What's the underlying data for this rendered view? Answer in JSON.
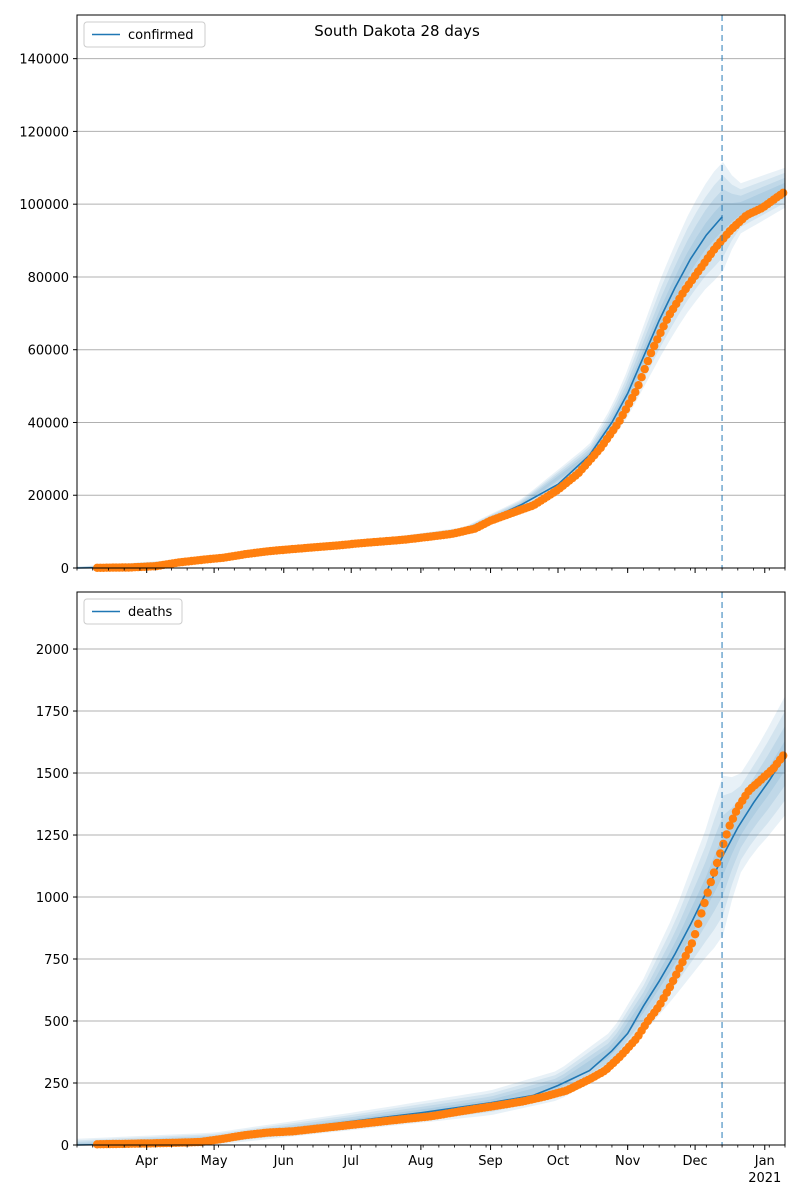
{
  "figure": {
    "title": "South Dakota 28 days"
  },
  "chart_data": [
    {
      "type": "line",
      "title": "South Dakota 28 days",
      "legend": {
        "label": "confirmed",
        "placement": "top-left"
      },
      "xlim": [
        "2020-03-01",
        "2021-01-10"
      ],
      "ylim": [
        0,
        152000
      ],
      "yticks": [
        0,
        20000,
        40000,
        60000,
        80000,
        100000,
        120000,
        140000
      ],
      "grid": "y",
      "forecast_start": "2020-12-13",
      "fit_line": {
        "x": [
          "2020-03-01",
          "2020-04-01",
          "2020-05-01",
          "2020-06-01",
          "2020-07-01",
          "2020-08-01",
          "2020-08-20",
          "2020-09-01",
          "2020-09-15",
          "2020-10-01",
          "2020-10-15",
          "2020-10-25",
          "2020-11-01",
          "2020-11-08",
          "2020-11-15",
          "2020-11-22",
          "2020-11-29",
          "2020-12-06",
          "2020-12-13"
        ],
        "y": [
          0,
          300,
          2500,
          5000,
          6500,
          8500,
          10500,
          13500,
          17500,
          23000,
          31000,
          40000,
          48000,
          58000,
          68000,
          77000,
          85000,
          91500,
          96500
        ]
      },
      "observed": {
        "x": [
          "2020-03-10",
          "2020-03-25",
          "2020-04-05",
          "2020-04-15",
          "2020-04-25",
          "2020-05-05",
          "2020-05-15",
          "2020-05-25",
          "2020-06-05",
          "2020-06-15",
          "2020-06-25",
          "2020-07-05",
          "2020-07-15",
          "2020-07-25",
          "2020-08-05",
          "2020-08-15",
          "2020-08-25",
          "2020-09-01",
          "2020-09-10",
          "2020-09-20",
          "2020-10-01",
          "2020-10-10",
          "2020-10-20",
          "2020-10-28",
          "2020-11-05",
          "2020-11-12",
          "2020-11-19",
          "2020-11-26",
          "2020-12-03",
          "2020-12-10",
          "2020-12-17",
          "2020-12-24",
          "2020-12-31",
          "2021-01-10"
        ],
        "y": [
          50,
          150,
          500,
          1500,
          2200,
          2800,
          3800,
          4600,
          5200,
          5700,
          6200,
          6800,
          7300,
          7800,
          8600,
          9400,
          10800,
          13000,
          15000,
          17200,
          21500,
          26000,
          33000,
          40000,
          49000,
          60000,
          69000,
          76000,
          82000,
          88000,
          93000,
          97000,
          99000,
          103500
        ]
      },
      "bands": {
        "x": [
          "2020-03-01",
          "2020-05-01",
          "2020-07-01",
          "2020-08-20",
          "2020-09-15",
          "2020-10-15",
          "2020-10-25",
          "2020-11-01",
          "2020-11-08",
          "2020-11-15",
          "2020-11-22",
          "2020-11-29",
          "2020-12-06",
          "2020-12-13",
          "2020-12-20",
          "2020-12-27",
          "2021-01-03",
          "2021-01-10"
        ],
        "center": [
          0,
          2500,
          6500,
          10500,
          17500,
          31000,
          40000,
          48000,
          58000,
          68000,
          77000,
          85000,
          91500,
          96500,
          98500,
          100500,
          102500,
          104500
        ],
        "spread": [
          400,
          400,
          500,
          700,
          1500,
          3000,
          4500,
          6500,
          8500,
          10500,
          12000,
          13500,
          14500,
          15500,
          7000,
          6500,
          6000,
          5500
        ]
      }
    },
    {
      "type": "line",
      "legend": {
        "label": "deaths",
        "placement": "top-left"
      },
      "xlim": [
        "2020-03-01",
        "2021-01-10"
      ],
      "ylim": [
        0,
        2230
      ],
      "yticks": [
        0,
        250,
        500,
        750,
        1000,
        1250,
        1500,
        1750,
        2000
      ],
      "grid": "y",
      "forecast_start": "2020-12-13",
      "fit_line": {
        "x": [
          "2020-03-01",
          "2020-04-01",
          "2020-05-01",
          "2020-06-01",
          "2020-07-01",
          "2020-08-01",
          "2020-09-01",
          "2020-09-20",
          "2020-10-01",
          "2020-10-15",
          "2020-10-25",
          "2020-11-01",
          "2020-11-08",
          "2020-11-15",
          "2020-11-22",
          "2020-11-29",
          "2020-12-06",
          "2020-12-13",
          "2020-12-20",
          "2020-12-27",
          "2021-01-03",
          "2021-01-10"
        ],
        "y": [
          0,
          5,
          25,
          60,
          95,
          130,
          170,
          200,
          240,
          300,
          380,
          450,
          560,
          660,
          770,
          890,
          1020,
          1160,
          1280,
          1380,
          1470,
          1570
        ]
      },
      "observed": {
        "x": [
          "2020-03-10",
          "2020-03-25",
          "2020-04-10",
          "2020-04-25",
          "2020-05-05",
          "2020-05-15",
          "2020-05-25",
          "2020-06-05",
          "2020-06-15",
          "2020-06-25",
          "2020-07-05",
          "2020-07-15",
          "2020-07-25",
          "2020-08-05",
          "2020-08-15",
          "2020-08-25",
          "2020-09-05",
          "2020-09-15",
          "2020-09-25",
          "2020-10-05",
          "2020-10-15",
          "2020-10-22",
          "2020-10-29",
          "2020-11-05",
          "2020-11-10",
          "2020-11-15",
          "2020-11-20",
          "2020-11-25",
          "2020-11-30",
          "2020-12-04",
          "2020-12-08",
          "2020-12-12",
          "2020-12-16",
          "2020-12-20",
          "2020-12-25",
          "2020-12-30",
          "2021-01-05",
          "2021-01-10"
        ],
        "y": [
          3,
          5,
          8,
          12,
          25,
          40,
          50,
          55,
          65,
          75,
          85,
          95,
          105,
          115,
          130,
          145,
          160,
          175,
          195,
          220,
          265,
          300,
          360,
          430,
          500,
          560,
          640,
          730,
          820,
          940,
          1060,
          1170,
          1280,
          1360,
          1430,
          1470,
          1520,
          1580
        ]
      },
      "bands": {
        "x": [
          "2020-03-01",
          "2020-05-01",
          "2020-07-01",
          "2020-09-01",
          "2020-10-01",
          "2020-10-25",
          "2020-11-08",
          "2020-11-22",
          "2020-12-06",
          "2020-12-13",
          "2020-12-20",
          "2020-12-27",
          "2021-01-03",
          "2021-01-10"
        ],
        "center": [
          0,
          25,
          95,
          170,
          240,
          380,
          560,
          770,
          1020,
          1160,
          1280,
          1380,
          1470,
          1570
        ],
        "spread": [
          25,
          25,
          35,
          50,
          60,
          80,
          110,
          170,
          260,
          330,
          200,
          200,
          220,
          240
        ]
      }
    }
  ],
  "x_axis": {
    "months": [
      {
        "label": "Apr",
        "date": "2020-04-01"
      },
      {
        "label": "May",
        "date": "2020-05-01"
      },
      {
        "label": "Jun",
        "date": "2020-06-01"
      },
      {
        "label": "Jul",
        "date": "2020-07-01"
      },
      {
        "label": "Aug",
        "date": "2020-08-01"
      },
      {
        "label": "Sep",
        "date": "2020-09-01"
      },
      {
        "label": "Oct",
        "date": "2020-10-01"
      },
      {
        "label": "Nov",
        "date": "2020-11-01"
      },
      {
        "label": "Dec",
        "date": "2020-12-01"
      },
      {
        "label": "Jan",
        "date": "2021-01-01"
      }
    ],
    "year_label": "2021"
  },
  "colors": {
    "fit": "#1f77b4",
    "observed": "#ff7f0e",
    "band": "#1f77b4",
    "grid": "#b0b0b0",
    "forecast_line": "#1f77b4"
  }
}
